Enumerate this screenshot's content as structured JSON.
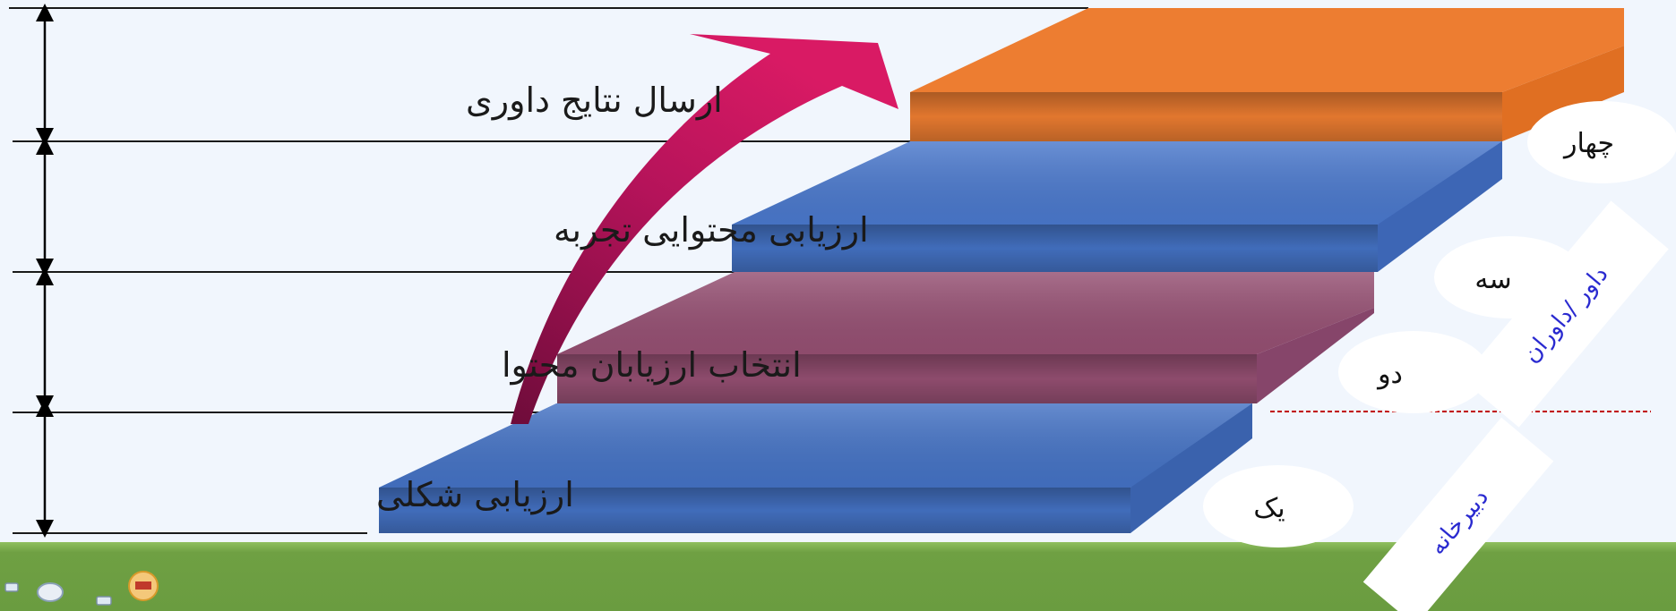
{
  "stages": [
    {
      "label": "ارسال نتایج داوری",
      "number": "چهار",
      "color": "#ed7d31"
    },
    {
      "label": "ارزیابی محتوایی تجربه",
      "number": "سه",
      "color": "#4472c4"
    },
    {
      "label": "انتخاب ارزیابان محتوا",
      "number": "دو",
      "color": "#954f72"
    },
    {
      "label": "ارزیابی شکلی",
      "number": "یک",
      "color": "#4472c4"
    }
  ],
  "tags": {
    "reviewers": "داور /داوران",
    "secretariat": "دبیرخانه"
  },
  "colors": {
    "background": "#f1f6fd",
    "ground": "#6fa043",
    "arrow": "#c9155f",
    "divider": "#c00000"
  }
}
